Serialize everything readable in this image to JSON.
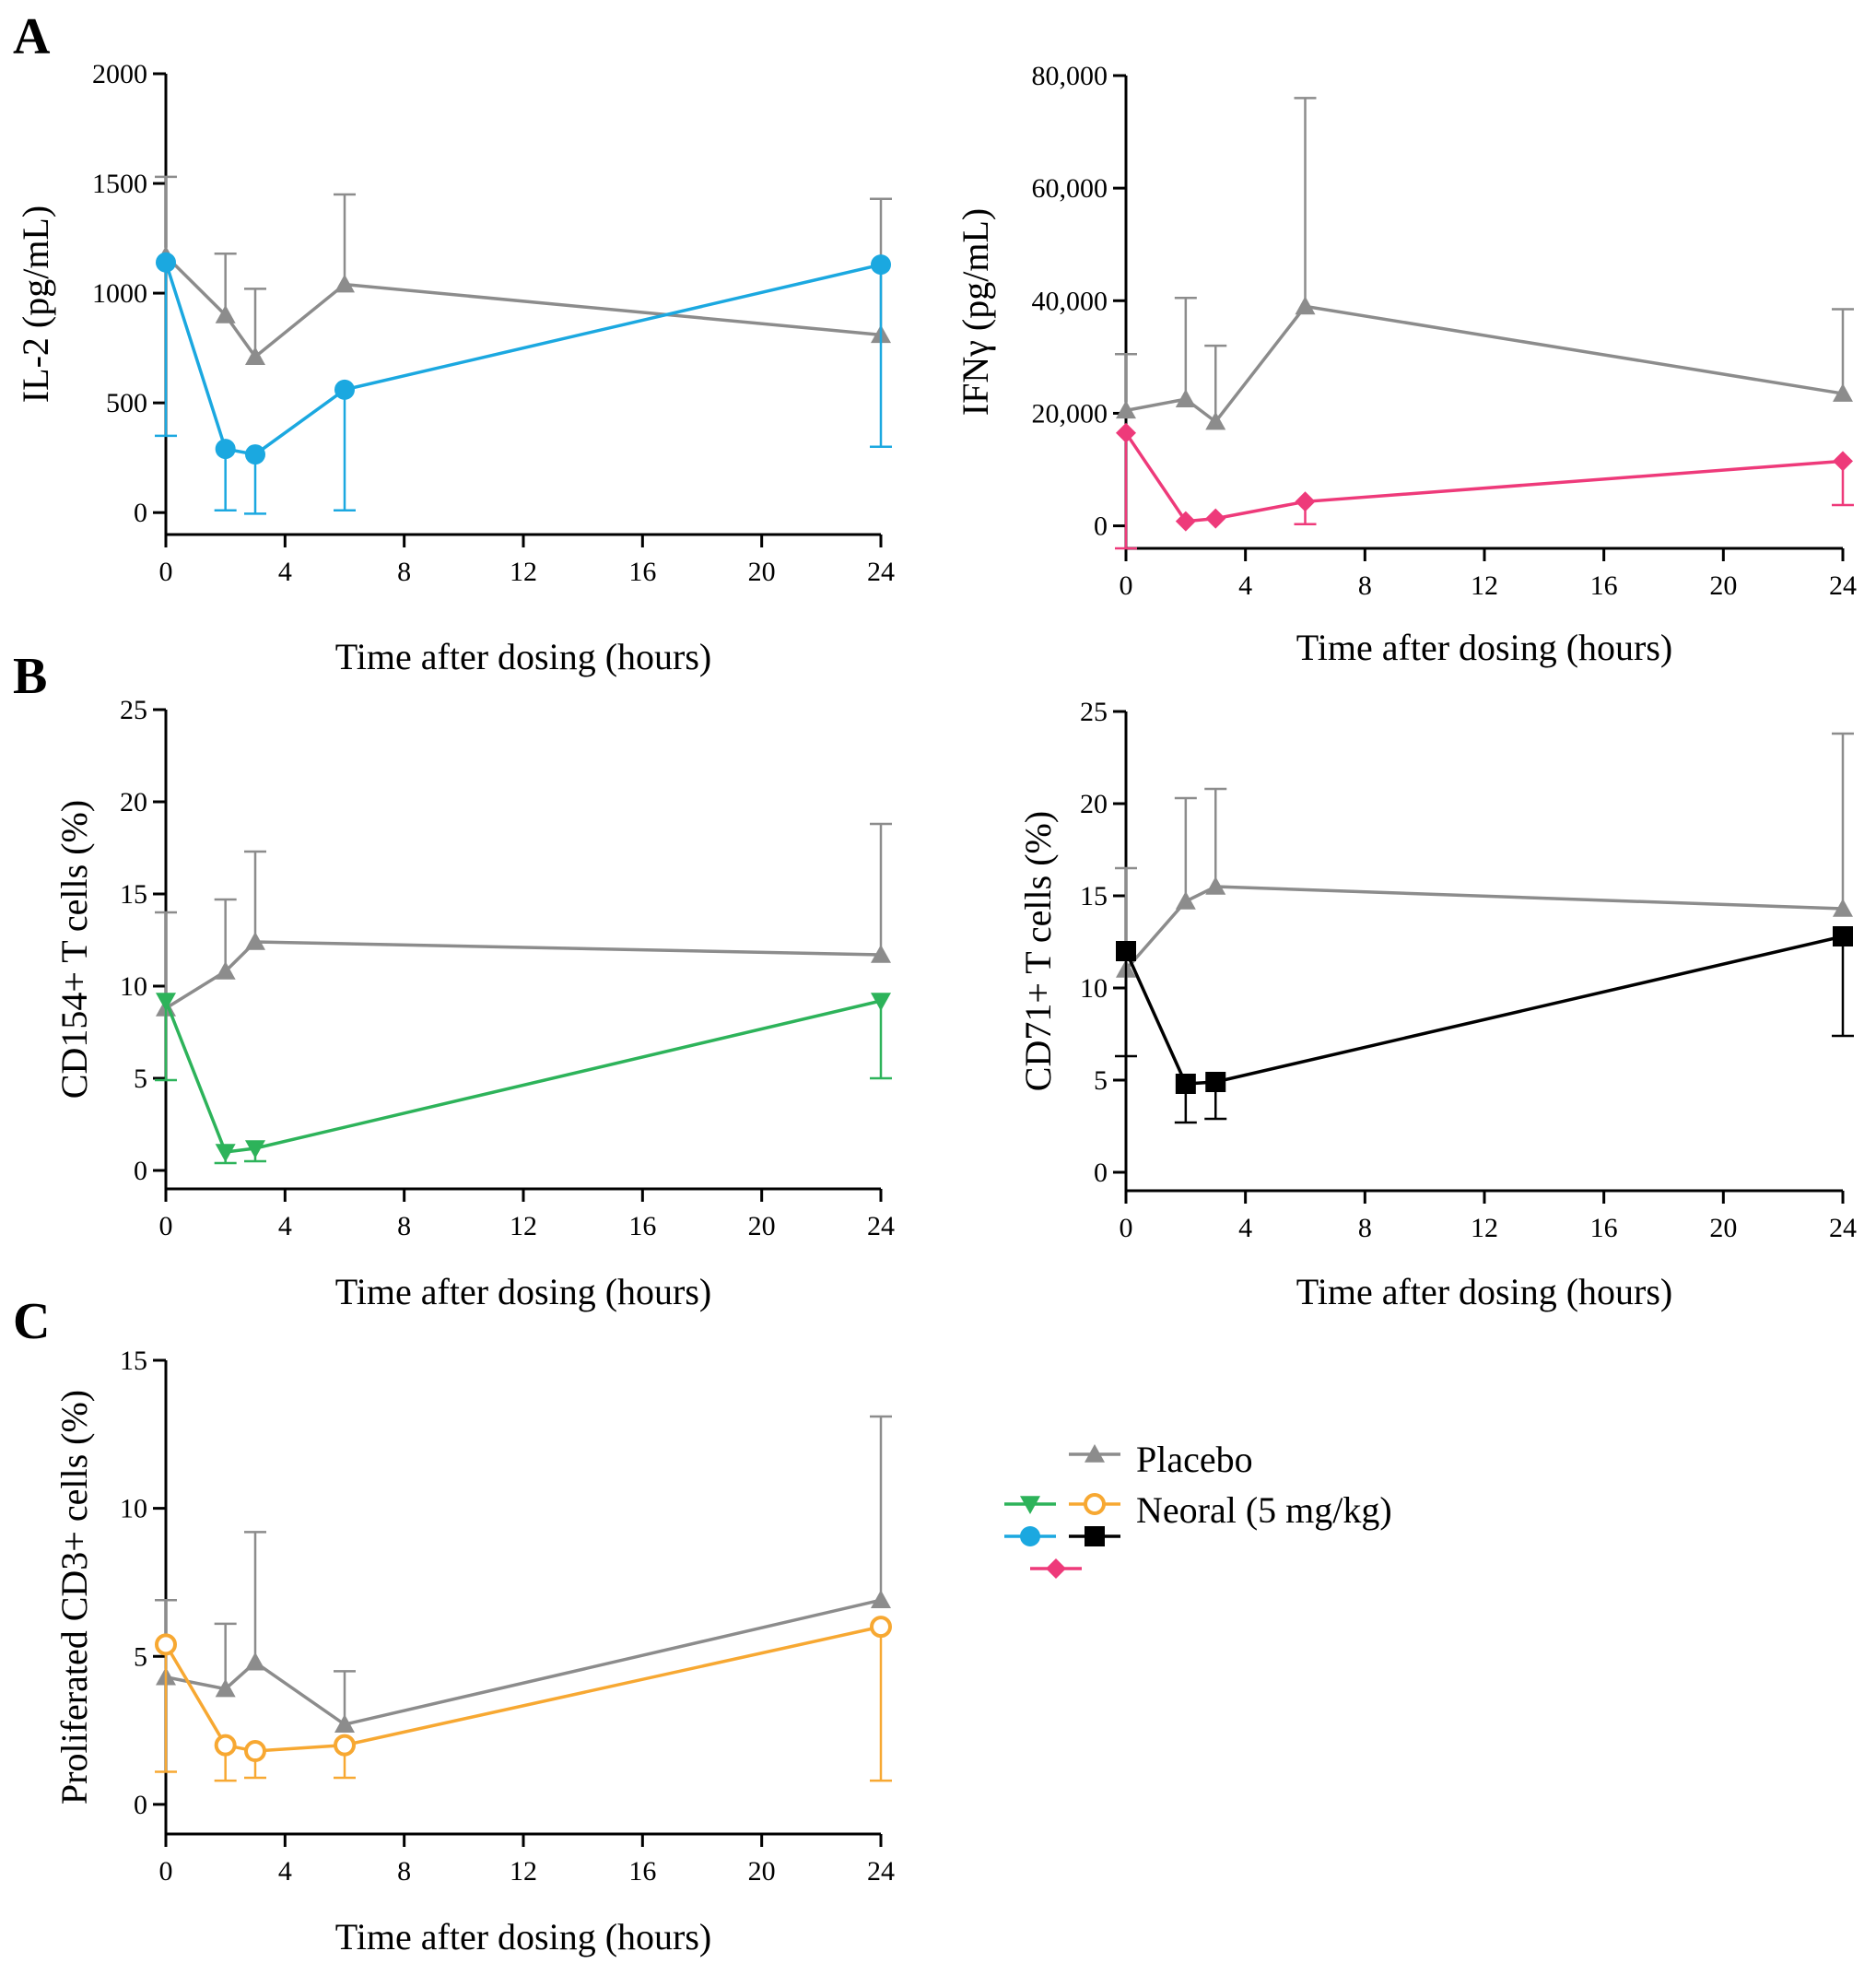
{
  "panel_labels": [
    "A",
    "B",
    "C"
  ],
  "legend": {
    "placebo_label": "Placebo",
    "neoral_label": "Neoral (5 mg/kg)"
  },
  "colors": {
    "placebo": "#8c8c8c",
    "il2": "#1ba8e0",
    "ifng": "#ee3a7a",
    "cd154": "#2db35a",
    "cd71": "#000000",
    "cd3": "#f7a832"
  },
  "chart_data": [
    {
      "id": "il2",
      "panel": "A",
      "type": "line",
      "title": "",
      "xlabel": "Time after dosing (hours)",
      "ylabel": "IL-2 (pg/mL)",
      "xlim": [
        0,
        24
      ],
      "ylim": [
        -100,
        2000
      ],
      "xticks": [
        0,
        4,
        8,
        12,
        16,
        20,
        24
      ],
      "xtick_labels": [
        "0",
        "4",
        "8",
        "12",
        "16",
        "20",
        "24"
      ],
      "yticks": [
        0,
        500,
        1000,
        1500,
        2000
      ],
      "ytick_labels": [
        "0",
        "500",
        "1000",
        "1500",
        "2000"
      ],
      "series": [
        {
          "name": "Placebo",
          "color_key": "placebo",
          "marker": "triangle-up",
          "x": [
            0,
            2,
            3,
            6,
            24
          ],
          "y": [
            1170,
            900,
            710,
            1040,
            810
          ],
          "err_up": [
            360,
            280,
            310,
            410,
            620
          ],
          "err_down": [
            0,
            0,
            0,
            0,
            0
          ]
        },
        {
          "name": "Neoral (5 mg/kg)",
          "color_key": "il2",
          "marker": "circle",
          "x": [
            0,
            2,
            3,
            6,
            24
          ],
          "y": [
            1140,
            290,
            265,
            560,
            1130
          ],
          "err_up": [
            0,
            0,
            0,
            0,
            0
          ],
          "err_down": [
            790,
            280,
            270,
            550,
            830
          ]
        }
      ]
    },
    {
      "id": "ifng",
      "panel": "A",
      "type": "line",
      "title": "",
      "xlabel": "Time after dosing (hours)",
      "ylabel": "IFNγ (pg/mL)",
      "xlim": [
        0,
        24
      ],
      "ylim": [
        -4000,
        80000
      ],
      "xticks": [
        0,
        4,
        8,
        12,
        16,
        20,
        24
      ],
      "xtick_labels": [
        "0",
        "4",
        "8",
        "12",
        "16",
        "20",
        "24"
      ],
      "yticks": [
        0,
        20000,
        40000,
        60000,
        80000
      ],
      "ytick_labels": [
        "0",
        "20,000",
        "40,000",
        "60,000",
        "80,000"
      ],
      "series": [
        {
          "name": "Placebo",
          "color_key": "placebo",
          "marker": "triangle-up",
          "x": [
            0,
            2,
            3,
            6,
            24
          ],
          "y": [
            20500,
            22500,
            18500,
            39000,
            23500
          ],
          "err_up": [
            10000,
            18000,
            13500,
            37000,
            15000
          ],
          "err_down": [
            0,
            0,
            0,
            0,
            0
          ]
        },
        {
          "name": "Neoral (5 mg/kg)",
          "color_key": "ifng",
          "marker": "diamond",
          "x": [
            0,
            2,
            3,
            6,
            24
          ],
          "y": [
            16500,
            800,
            1300,
            4300,
            11500
          ],
          "err_up": [
            0,
            0,
            0,
            0,
            0
          ],
          "err_down": [
            20500,
            0,
            0,
            4000,
            7800
          ]
        }
      ]
    },
    {
      "id": "cd154",
      "panel": "B",
      "type": "line",
      "title": "",
      "xlabel": "Time after dosing (hours)",
      "ylabel": "CD154+ T cells (%)",
      "xlim": [
        0,
        24
      ],
      "ylim": [
        -1,
        25
      ],
      "xticks": [
        0,
        4,
        8,
        12,
        16,
        20,
        24
      ],
      "xtick_labels": [
        "0",
        "4",
        "8",
        "12",
        "16",
        "20",
        "24"
      ],
      "yticks": [
        0,
        5,
        10,
        15,
        20,
        25
      ],
      "ytick_labels": [
        "0",
        "5",
        "10",
        "15",
        "20",
        "25"
      ],
      "series": [
        {
          "name": "Placebo",
          "color_key": "placebo",
          "marker": "triangle-up",
          "x": [
            0,
            2,
            3,
            24
          ],
          "y": [
            8.8,
            10.8,
            12.4,
            11.7
          ],
          "err_up": [
            5.2,
            3.9,
            4.9,
            7.1
          ],
          "err_down": [
            0,
            0,
            0,
            0
          ]
        },
        {
          "name": "Neoral (5 mg/kg)",
          "color_key": "cd154",
          "marker": "triangle-down",
          "x": [
            0,
            2,
            3,
            24
          ],
          "y": [
            9.2,
            1.0,
            1.2,
            9.2
          ],
          "err_up": [
            0,
            0,
            0,
            0
          ],
          "err_down": [
            4.3,
            0.6,
            0.7,
            4.2
          ]
        }
      ]
    },
    {
      "id": "cd71",
      "panel": "B",
      "type": "line",
      "title": "",
      "xlabel": "Time after dosing (hours)",
      "ylabel": "CD71+ T cells (%)",
      "xlim": [
        0,
        24
      ],
      "ylim": [
        -1,
        25
      ],
      "xticks": [
        0,
        4,
        8,
        12,
        16,
        20,
        24
      ],
      "xtick_labels": [
        "0",
        "4",
        "8",
        "12",
        "16",
        "20",
        "24"
      ],
      "yticks": [
        0,
        5,
        10,
        15,
        20,
        25
      ],
      "ytick_labels": [
        "0",
        "5",
        "10",
        "15",
        "20",
        "25"
      ],
      "series": [
        {
          "name": "Placebo",
          "color_key": "placebo",
          "marker": "triangle-up",
          "x": [
            0,
            2,
            3,
            24
          ],
          "y": [
            11.0,
            14.7,
            15.5,
            14.3
          ],
          "err_up": [
            5.5,
            5.6,
            5.3,
            9.5
          ],
          "err_down": [
            0,
            0,
            0,
            0
          ]
        },
        {
          "name": "Neoral (5 mg/kg)",
          "color_key": "cd71",
          "marker": "square",
          "x": [
            0,
            2,
            3,
            24
          ],
          "y": [
            12.0,
            4.8,
            4.9,
            12.8
          ],
          "err_up": [
            0,
            0,
            0,
            0
          ],
          "err_down": [
            5.7,
            2.1,
            2.0,
            5.4
          ]
        }
      ]
    },
    {
      "id": "cd3",
      "panel": "C",
      "type": "line",
      "title": "",
      "xlabel": "Time after dosing (hours)",
      "ylabel": "Proliferated CD3+ cells (%)",
      "xlim": [
        0,
        24
      ],
      "ylim": [
        -1,
        15
      ],
      "xticks": [
        0,
        4,
        8,
        12,
        16,
        20,
        24
      ],
      "xtick_labels": [
        "0",
        "4",
        "8",
        "12",
        "16",
        "20",
        "24"
      ],
      "yticks": [
        0,
        5,
        10,
        15
      ],
      "ytick_labels": [
        "0",
        "5",
        "10",
        "15"
      ],
      "series": [
        {
          "name": "Placebo",
          "color_key": "placebo",
          "marker": "triangle-up",
          "x": [
            0,
            2,
            3,
            6,
            24
          ],
          "y": [
            4.3,
            3.9,
            4.8,
            2.7,
            6.9
          ],
          "err_up": [
            2.6,
            2.2,
            4.4,
            1.8,
            6.2
          ],
          "err_down": [
            0,
            0,
            0,
            0,
            0
          ]
        },
        {
          "name": "Neoral (5 mg/kg)",
          "color_key": "cd3",
          "marker": "open-circle",
          "x": [
            0,
            2,
            3,
            6,
            24
          ],
          "y": [
            5.4,
            2.0,
            1.8,
            2.0,
            6.0
          ],
          "err_up": [
            0,
            0,
            0,
            0,
            0
          ],
          "err_down": [
            4.3,
            1.2,
            0.9,
            1.1,
            5.2
          ]
        }
      ]
    }
  ]
}
